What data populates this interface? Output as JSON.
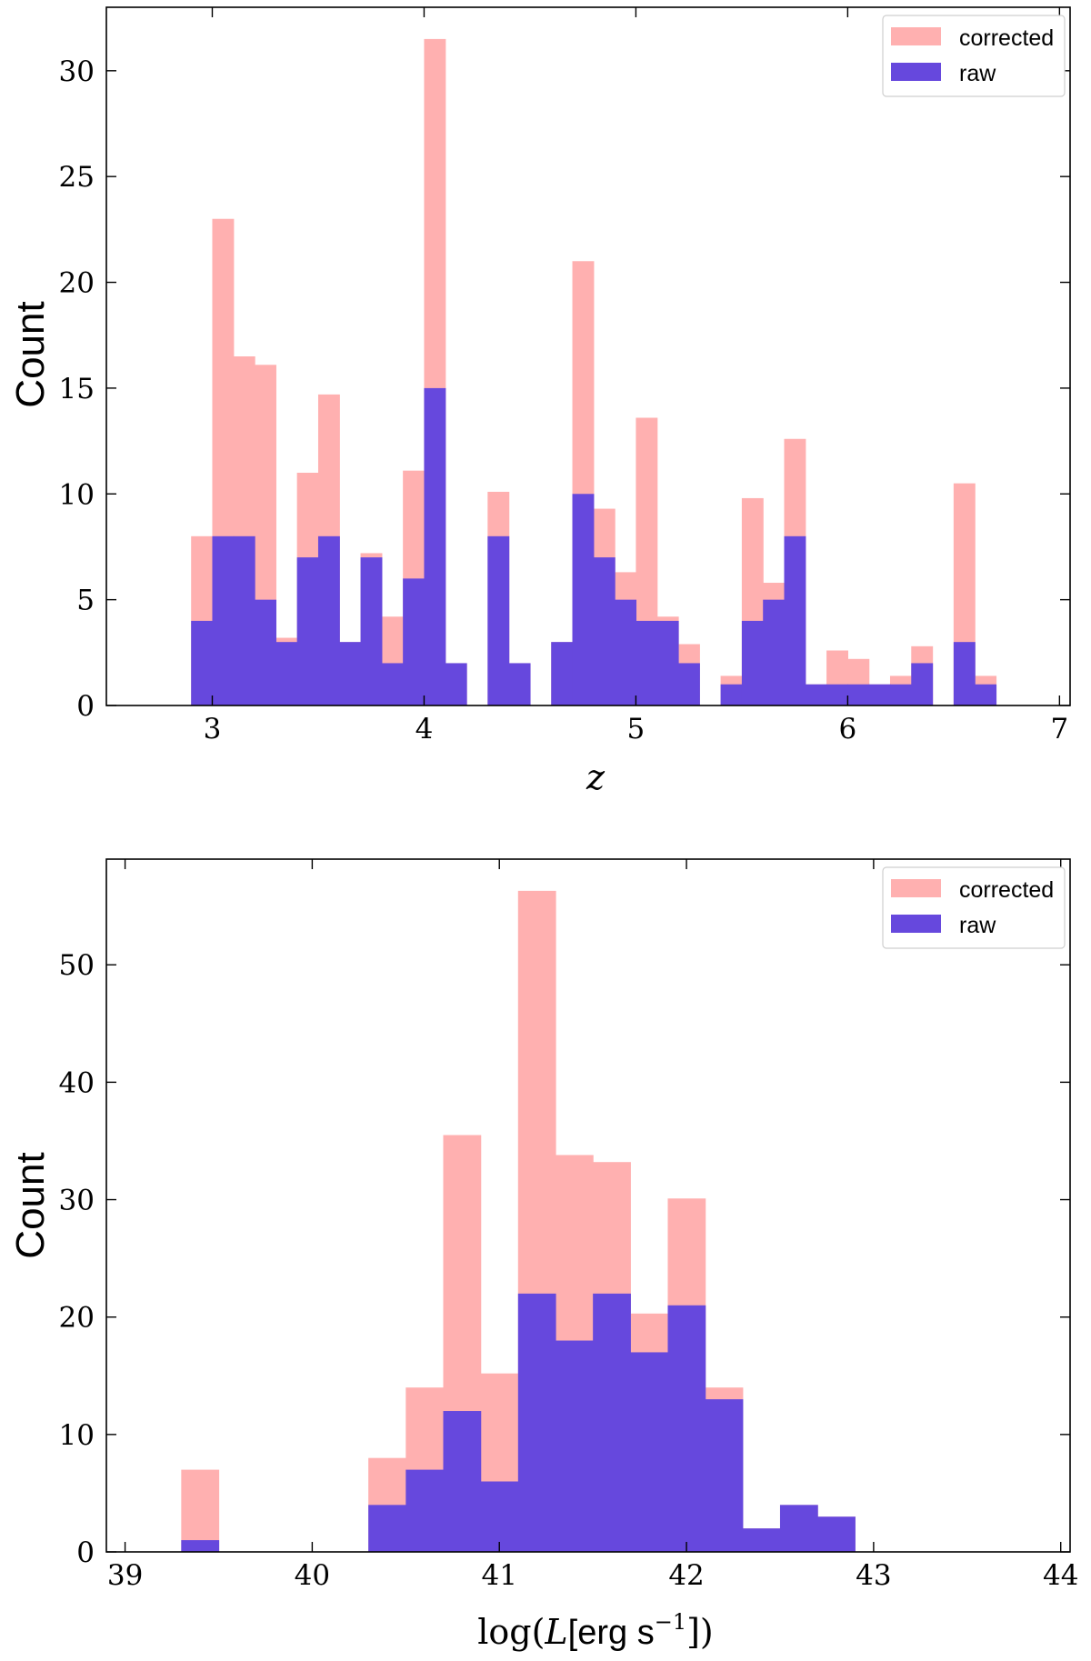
{
  "chart_data": [
    {
      "type": "bar",
      "title": "",
      "xlabel": "z",
      "ylabel": "Count",
      "xlim": [
        2.5,
        7.05
      ],
      "ylim": [
        0,
        33
      ],
      "xticks": [
        3,
        4,
        5,
        6,
        7
      ],
      "yticks": [
        0,
        5,
        10,
        15,
        20,
        25,
        30
      ],
      "bin_width": 0.1,
      "legend": {
        "location": "top-right",
        "entries": [
          "corrected",
          "raw"
        ]
      },
      "colors": {
        "corrected": "#ffb0b0",
        "raw": "#6648dd",
        "edge": "#000000"
      },
      "series": [
        {
          "name": "corrected",
          "bins": [
            {
              "x": 2.9,
              "value": 8
            },
            {
              "x": 3.0,
              "value": 23
            },
            {
              "x": 3.1,
              "value": 16.5
            },
            {
              "x": 3.2,
              "value": 16.1
            },
            {
              "x": 3.3,
              "value": 3.2
            },
            {
              "x": 3.4,
              "value": 11
            },
            {
              "x": 3.5,
              "value": 14.7
            },
            {
              "x": 3.6,
              "value": 3
            },
            {
              "x": 3.7,
              "value": 7.2
            },
            {
              "x": 3.8,
              "value": 4.2
            },
            {
              "x": 3.9,
              "value": 11.1
            },
            {
              "x": 4.0,
              "value": 31.5
            },
            {
              "x": 4.1,
              "value": 2
            },
            {
              "x": 4.3,
              "value": 10.1
            },
            {
              "x": 4.4,
              "value": 2
            },
            {
              "x": 4.6,
              "value": 3
            },
            {
              "x": 4.7,
              "value": 21
            },
            {
              "x": 4.8,
              "value": 9.3
            },
            {
              "x": 4.9,
              "value": 6.3
            },
            {
              "x": 5.0,
              "value": 13.6
            },
            {
              "x": 5.1,
              "value": 4.2
            },
            {
              "x": 5.2,
              "value": 2.9
            },
            {
              "x": 5.4,
              "value": 1.4
            },
            {
              "x": 5.5,
              "value": 9.8
            },
            {
              "x": 5.6,
              "value": 5.8
            },
            {
              "x": 5.7,
              "value": 12.6
            },
            {
              "x": 5.8,
              "value": 1
            },
            {
              "x": 5.9,
              "value": 2.6
            },
            {
              "x": 6.0,
              "value": 2.2
            },
            {
              "x": 6.1,
              "value": 1
            },
            {
              "x": 6.2,
              "value": 1.4
            },
            {
              "x": 6.3,
              "value": 2.8
            },
            {
              "x": 6.5,
              "value": 10.5
            },
            {
              "x": 6.6,
              "value": 1.4
            }
          ]
        },
        {
          "name": "raw",
          "bins": [
            {
              "x": 2.9,
              "value": 4
            },
            {
              "x": 3.0,
              "value": 8
            },
            {
              "x": 3.1,
              "value": 8
            },
            {
              "x": 3.2,
              "value": 5
            },
            {
              "x": 3.3,
              "value": 3
            },
            {
              "x": 3.4,
              "value": 7
            },
            {
              "x": 3.5,
              "value": 8
            },
            {
              "x": 3.6,
              "value": 3
            },
            {
              "x": 3.7,
              "value": 7
            },
            {
              "x": 3.8,
              "value": 2
            },
            {
              "x": 3.9,
              "value": 6
            },
            {
              "x": 4.0,
              "value": 15
            },
            {
              "x": 4.1,
              "value": 2
            },
            {
              "x": 4.3,
              "value": 8
            },
            {
              "x": 4.4,
              "value": 2
            },
            {
              "x": 4.6,
              "value": 3
            },
            {
              "x": 4.7,
              "value": 10
            },
            {
              "x": 4.8,
              "value": 7
            },
            {
              "x": 4.9,
              "value": 5
            },
            {
              "x": 5.0,
              "value": 4
            },
            {
              "x": 5.1,
              "value": 4
            },
            {
              "x": 5.2,
              "value": 2
            },
            {
              "x": 5.4,
              "value": 1
            },
            {
              "x": 5.5,
              "value": 4
            },
            {
              "x": 5.6,
              "value": 5
            },
            {
              "x": 5.7,
              "value": 8
            },
            {
              "x": 5.8,
              "value": 1
            },
            {
              "x": 5.9,
              "value": 1
            },
            {
              "x": 6.0,
              "value": 1
            },
            {
              "x": 6.1,
              "value": 1
            },
            {
              "x": 6.2,
              "value": 1
            },
            {
              "x": 6.3,
              "value": 2
            },
            {
              "x": 6.5,
              "value": 3
            },
            {
              "x": 6.6,
              "value": 1
            }
          ]
        }
      ]
    },
    {
      "type": "bar",
      "title": "",
      "xlabel": "log(L[erg s^-1])",
      "xlabel_parts": {
        "pre": "log(",
        "var": "L",
        "unit": "[erg s",
        "exp": "−1",
        "post": "])"
      },
      "ylabel": "Count",
      "xlim": [
        38.9,
        44.05
      ],
      "ylim": [
        0,
        59
      ],
      "xticks": [
        39,
        40,
        41,
        42,
        43,
        44
      ],
      "yticks": [
        0,
        10,
        20,
        30,
        40,
        50
      ],
      "bin_width": 0.2,
      "legend": {
        "location": "top-right",
        "entries": [
          "corrected",
          "raw"
        ]
      },
      "colors": {
        "corrected": "#ffb0b0",
        "raw": "#6648dd",
        "edge": "#000000"
      },
      "series": [
        {
          "name": "corrected",
          "bins": [
            {
              "x": 39.3,
              "value": 7
            },
            {
              "x": 40.3,
              "value": 8
            },
            {
              "x": 40.5,
              "value": 14
            },
            {
              "x": 40.7,
              "value": 35.5
            },
            {
              "x": 40.9,
              "value": 15.2
            },
            {
              "x": 41.1,
              "value": 56.3
            },
            {
              "x": 41.3,
              "value": 33.8
            },
            {
              "x": 41.5,
              "value": 33.2
            },
            {
              "x": 41.7,
              "value": 20.3
            },
            {
              "x": 41.9,
              "value": 30.1
            },
            {
              "x": 42.1,
              "value": 14
            },
            {
              "x": 42.3,
              "value": 2
            },
            {
              "x": 42.5,
              "value": 4
            },
            {
              "x": 42.7,
              "value": 3
            }
          ]
        },
        {
          "name": "raw",
          "bins": [
            {
              "x": 39.3,
              "value": 1
            },
            {
              "x": 40.3,
              "value": 4
            },
            {
              "x": 40.5,
              "value": 7
            },
            {
              "x": 40.7,
              "value": 12
            },
            {
              "x": 40.9,
              "value": 6
            },
            {
              "x": 41.1,
              "value": 22
            },
            {
              "x": 41.3,
              "value": 18
            },
            {
              "x": 41.5,
              "value": 22
            },
            {
              "x": 41.7,
              "value": 17
            },
            {
              "x": 41.9,
              "value": 21
            },
            {
              "x": 42.1,
              "value": 13
            },
            {
              "x": 42.3,
              "value": 2
            },
            {
              "x": 42.5,
              "value": 4
            },
            {
              "x": 42.7,
              "value": 3
            }
          ]
        }
      ]
    }
  ]
}
